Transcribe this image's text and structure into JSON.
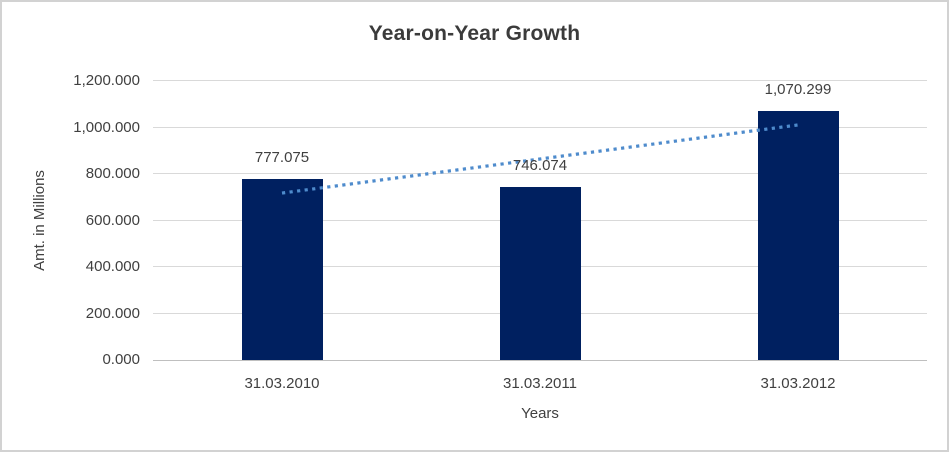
{
  "chart_data": {
    "type": "bar",
    "title": "Year-on-Year Growth",
    "xlabel": "Years",
    "ylabel": "Amt. in Millions",
    "categories": [
      "31.03.2010",
      "31.03.2011",
      "31.03.2012"
    ],
    "series": [
      {
        "name": "Amt. in Millions",
        "values": [
          777.075,
          746.074,
          1070.299
        ]
      }
    ],
    "data_labels": [
      "777.075",
      "746.074",
      "1,070.299"
    ],
    "ylim": [
      0,
      1200
    ],
    "ytick_step": 200,
    "ytick_labels": [
      "0.000",
      "200.000",
      "400.000",
      "600.000",
      "800.000",
      "1,000.000",
      "1,200.000"
    ],
    "grid": true,
    "legend": "none",
    "trendline": {
      "type": "linear",
      "style": "dotted",
      "start_value": 718,
      "end_value": 1011
    },
    "colors": {
      "bar": "#002060",
      "trendline": "#4e8bcc",
      "gridline": "#d9d9d9",
      "axis_line": "#bfbfbf",
      "text": "#404040"
    }
  }
}
